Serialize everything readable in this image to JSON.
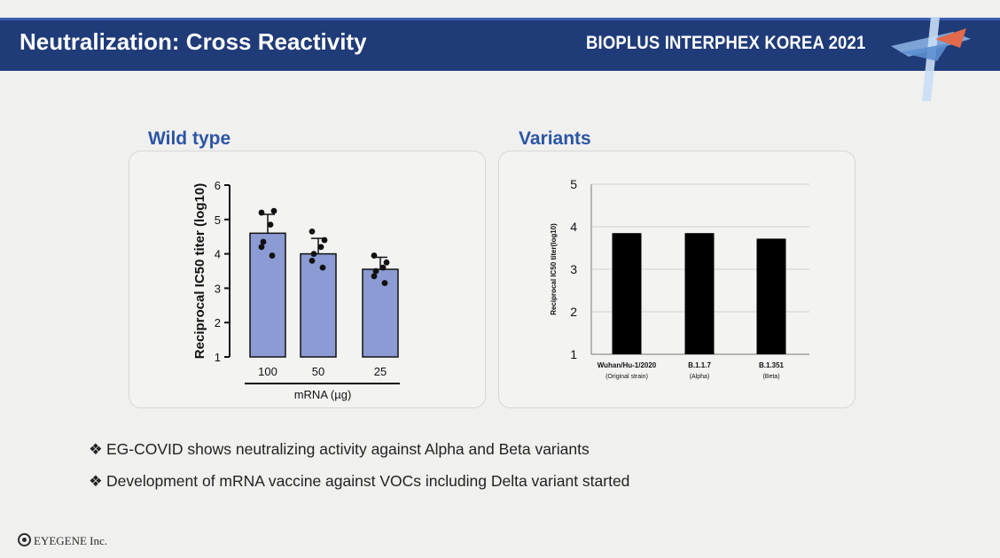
{
  "slide": {
    "title": "Neutralization: Cross Reactivity",
    "conference": "BIOPLUS INTERPHEX KOREA 2021"
  },
  "panels": {
    "left_title": "Wild type",
    "right_title": "Variants"
  },
  "colors": {
    "header_bg": "#1f3b78",
    "panel_title": "#2c55a3",
    "wild_bar": "#8c9bd3",
    "variant_bar": "#000000"
  },
  "chart_data": [
    {
      "type": "bar",
      "categories": [
        "100",
        "50",
        "25"
      ],
      "values": [
        4.6,
        4.0,
        3.55
      ],
      "error": [
        0.55,
        0.45,
        0.35
      ],
      "points": [
        [
          5.2,
          5.25,
          4.85,
          4.35,
          4.2,
          3.95
        ],
        [
          4.65,
          4.4,
          4.2,
          4.0,
          3.8,
          3.6
        ],
        [
          3.95,
          3.75,
          3.6,
          3.5,
          3.35,
          3.15
        ]
      ],
      "ylabel": "Reciprocal IC50 titer (log10)",
      "xlabel": "mRNA (µg)",
      "ylim": [
        1,
        6
      ],
      "yticks": [
        "1",
        "2",
        "3",
        "4",
        "5",
        "6"
      ],
      "grid": false
    },
    {
      "type": "bar",
      "categories": [
        "Wuhan/Hu-1/2020",
        "B.1.1.7",
        "B.1.351"
      ],
      "subcategories": [
        "(Original strain)",
        "(Alpha)",
        "(Beta)"
      ],
      "values": [
        3.85,
        3.85,
        3.72
      ],
      "ylabel": "Reciprocal IC50 titer(log10)",
      "ylim": [
        1,
        5
      ],
      "yticks": [
        "1",
        "2",
        "3",
        "4",
        "5"
      ],
      "grid": true
    }
  ],
  "bullets": [
    "EG-COVID shows neutralizing activity against Alpha and Beta variants",
    "Development of mRNA vaccine against VOCs including Delta variant started"
  ],
  "bullet_mark": "❖",
  "footer": {
    "company": "EYEGENE Inc."
  }
}
